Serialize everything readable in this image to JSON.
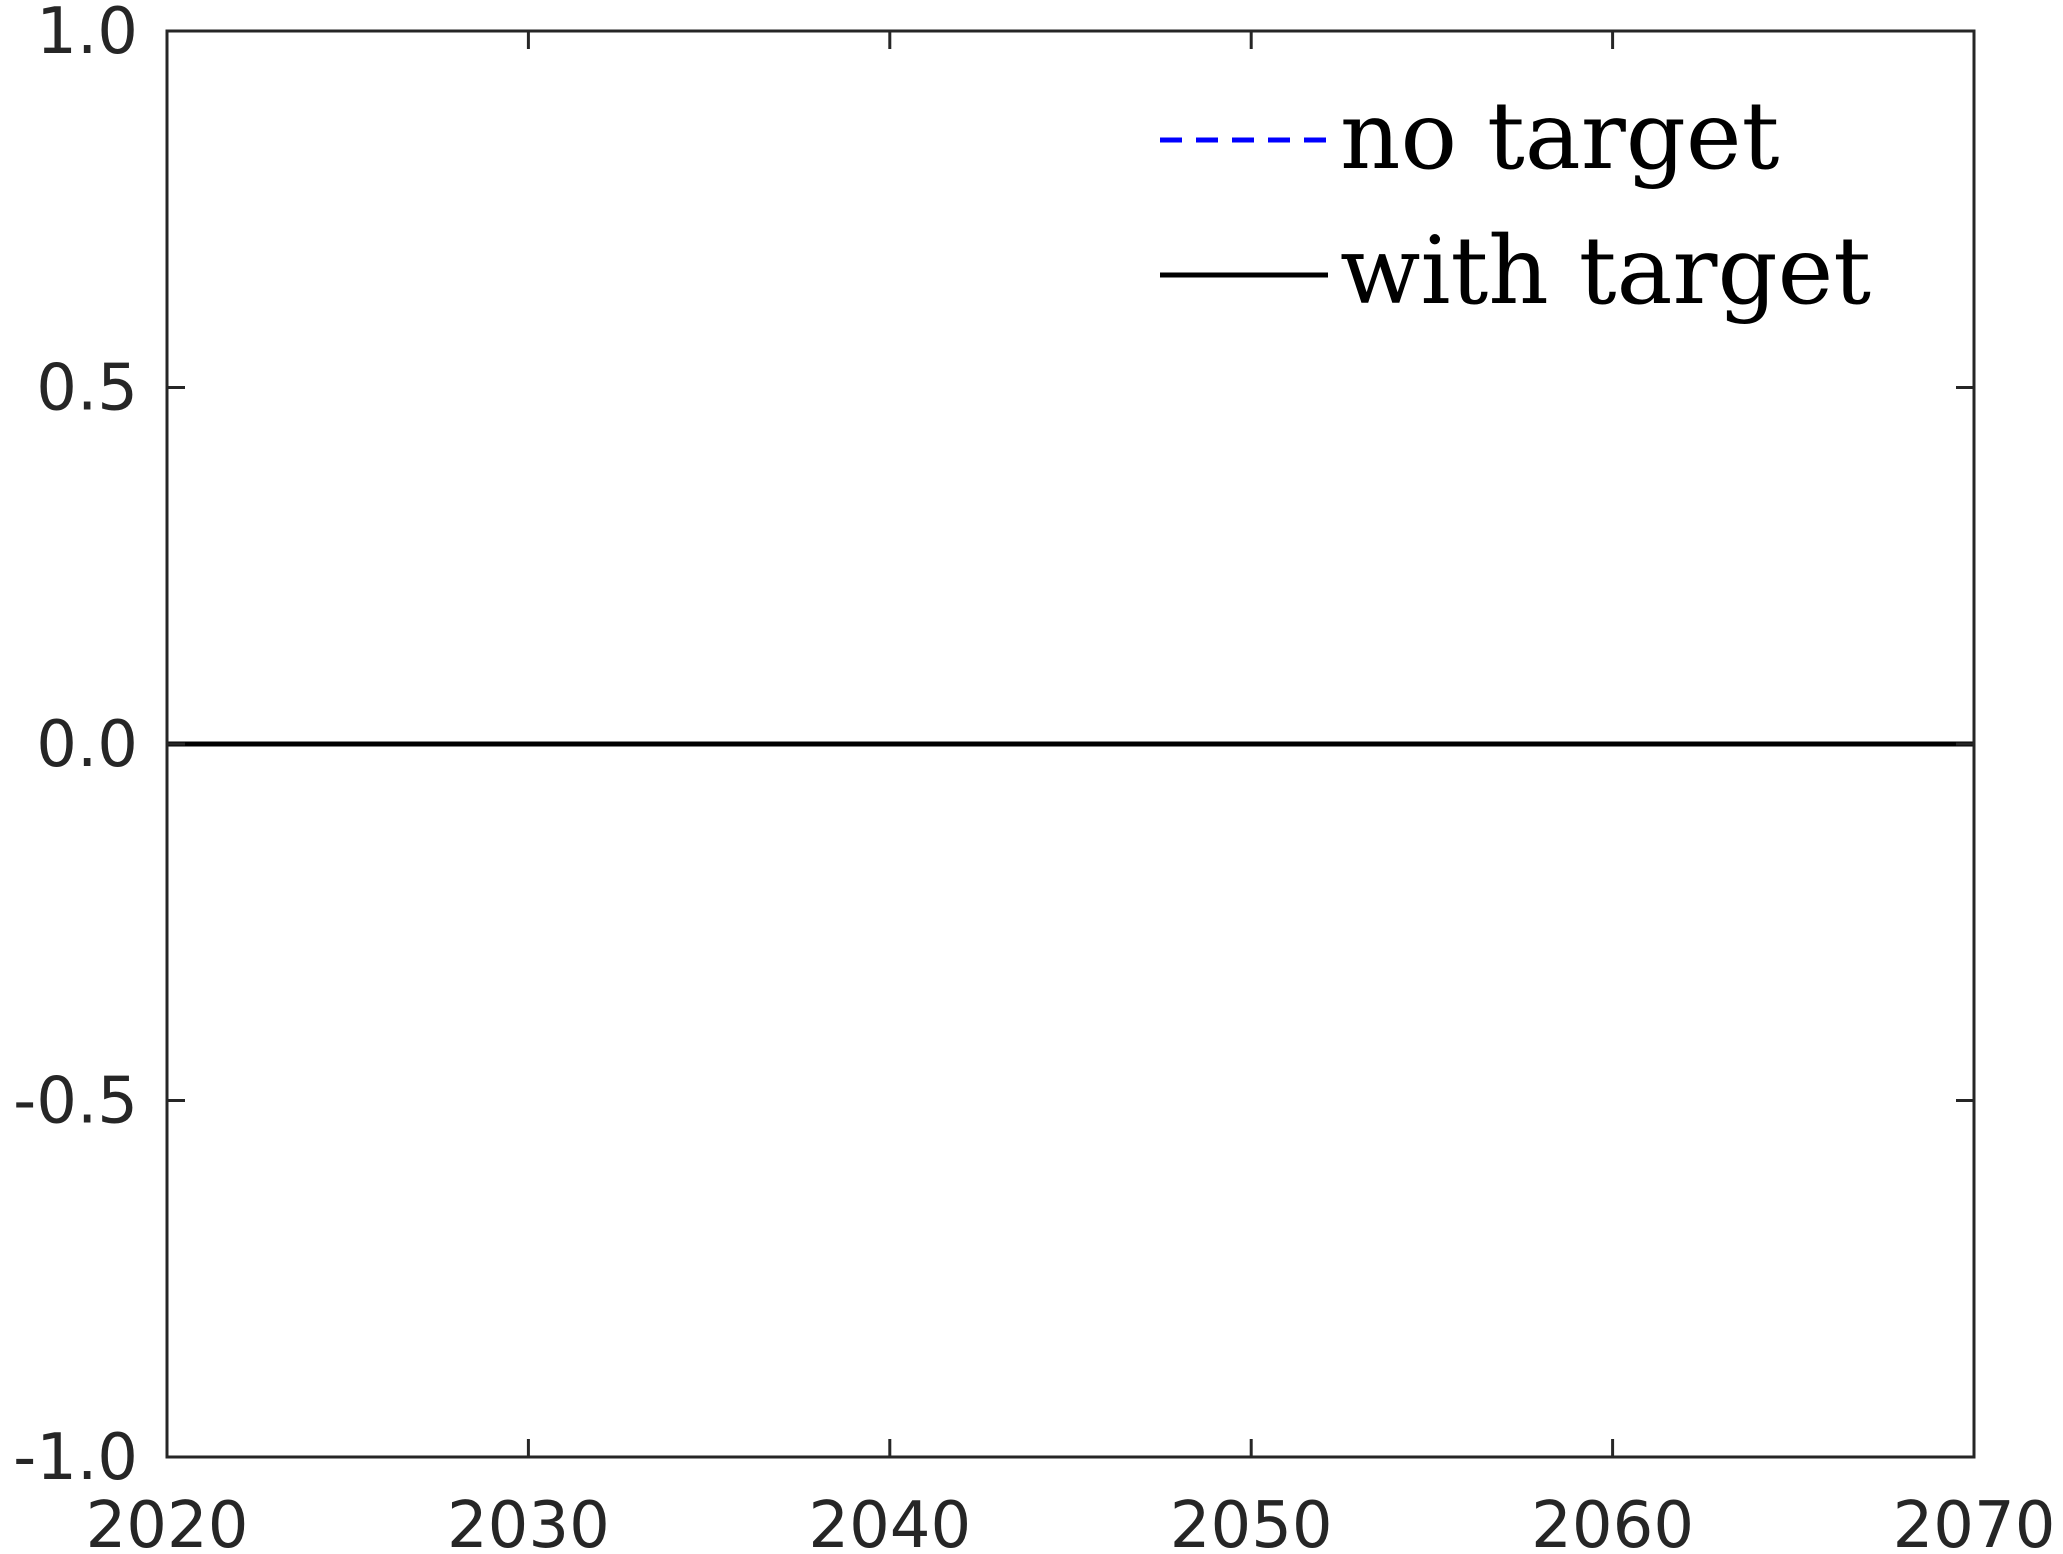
{
  "chart_data": {
    "type": "line",
    "title": "",
    "xlabel": "",
    "ylabel": "",
    "xlim": [
      2020,
      2070
    ],
    "ylim": [
      -1.0,
      1.0
    ],
    "x_ticks": [
      2020,
      2030,
      2040,
      2050,
      2060,
      2070
    ],
    "x_tick_labels": [
      "2020",
      "2030",
      "2040",
      "2050",
      "2060",
      "2070"
    ],
    "y_ticks": [
      -1.0,
      -0.5,
      0.0,
      0.5,
      1.0
    ],
    "y_tick_labels": [
      "-1.0",
      "-0.5",
      "0.0",
      "0.5",
      "1.0"
    ],
    "grid": false,
    "legend_position": "top-right",
    "series": [
      {
        "name": "no target",
        "color": "#0000ff",
        "line_style": "dashed",
        "x": [
          2020,
          2070
        ],
        "y": [
          0.0,
          0.0
        ]
      },
      {
        "name": "with target",
        "color": "#000000",
        "line_style": "solid",
        "x": [
          2020,
          2070
        ],
        "y": [
          0.0,
          0.0
        ]
      }
    ]
  },
  "colors": {
    "axis": "#262626",
    "background": "#ffffff"
  }
}
